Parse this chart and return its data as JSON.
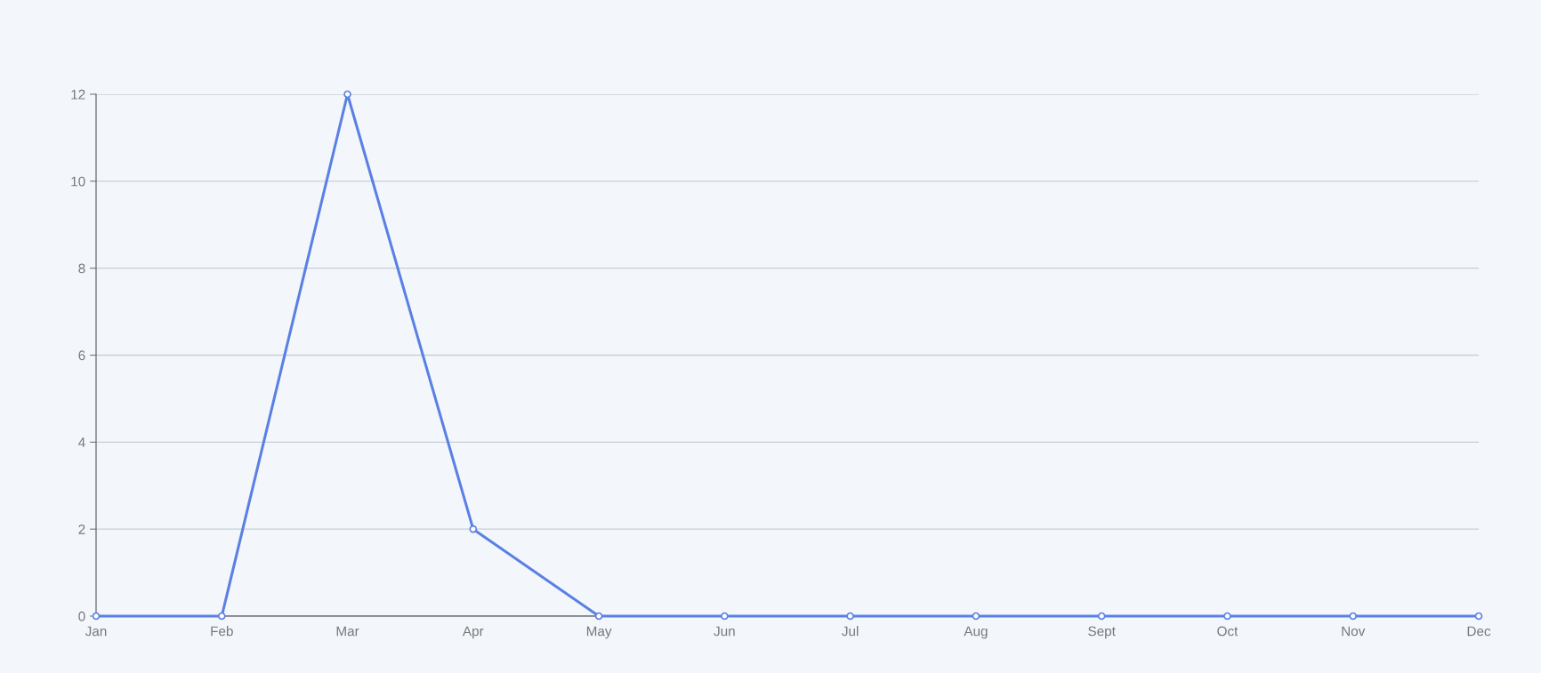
{
  "chart_data": {
    "type": "line",
    "categories": [
      "Jan",
      "Feb",
      "Mar",
      "Apr",
      "May",
      "Jun",
      "Jul",
      "Aug",
      "Sept",
      "Oct",
      "Nov",
      "Dec"
    ],
    "series": [
      {
        "color": "#5b80e4",
        "values": [
          0,
          0,
          12,
          2,
          0,
          0,
          0,
          0,
          0,
          0,
          0,
          0
        ]
      }
    ],
    "ylim": [
      0,
      12
    ],
    "yticks": [
      0,
      2,
      4,
      6,
      8,
      10,
      12
    ],
    "grid": "y",
    "marker": "circle",
    "line_style": "solid"
  }
}
